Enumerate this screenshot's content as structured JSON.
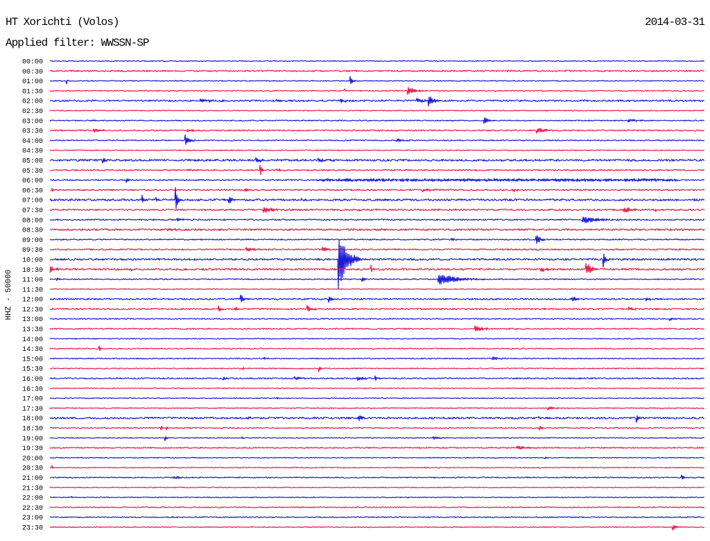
{
  "chart_data": {
    "type": "line",
    "title": "HT Xorichti (Volos)",
    "date": "2014-03-31",
    "filter_label": "Applied filter: WWSSN-SP",
    "ylabel": "HHZ - 50000",
    "grid": false,
    "trace_colors": [
      "#1c1cd4",
      "#ea1a4c"
    ],
    "traces": [
      {
        "start": "00:00",
        "noise": 0.04,
        "events": []
      },
      {
        "start": "00:30",
        "noise": 0.07,
        "events": [
          {
            "t": "00:34:27",
            "amp": 0.2,
            "dur": 6
          }
        ]
      },
      {
        "start": "01:00",
        "noise": 0.04,
        "events": [
          {
            "t": "01:00:46",
            "amp": 0.3,
            "dur": 6
          },
          {
            "t": "01:13:46",
            "amp": 0.55,
            "dur": 18
          }
        ]
      },
      {
        "start": "01:30",
        "noise": 0.05,
        "events": [
          {
            "t": "01:43:30",
            "amp": 0.2,
            "dur": 6
          },
          {
            "t": "01:46:24",
            "amp": 0.4,
            "dur": 54
          }
        ]
      },
      {
        "start": "02:00",
        "noise": 0.08,
        "events": [
          {
            "t": "02:06:54",
            "amp": 0.15,
            "dur": 96
          },
          {
            "t": "02:10:24",
            "amp": 0.15,
            "dur": 36
          },
          {
            "t": "02:13:18",
            "amp": 0.2,
            "dur": 54
          },
          {
            "t": "02:16:48",
            "amp": 0.25,
            "dur": 54
          },
          {
            "t": "02:17:21",
            "amp": 0.55,
            "dur": 36
          }
        ]
      },
      {
        "start": "02:30",
        "noise": 0.04,
        "events": []
      },
      {
        "start": "03:00",
        "noise": 0.05,
        "events": [
          {
            "t": "03:02:00",
            "amp": 0.12,
            "dur": 12
          },
          {
            "t": "03:19:53",
            "amp": 0.4,
            "dur": 30
          },
          {
            "t": "03:26:30",
            "amp": 0.18,
            "dur": 54
          }
        ]
      },
      {
        "start": "03:30",
        "noise": 0.06,
        "events": [
          {
            "t": "03:32:00",
            "amp": 0.2,
            "dur": 48
          },
          {
            "t": "03:36:18",
            "amp": 0.15,
            "dur": 60
          },
          {
            "t": "03:52:18",
            "amp": 0.25,
            "dur": 72
          }
        ]
      },
      {
        "start": "04:00",
        "noise": 0.05,
        "events": [
          {
            "t": "04:06:12",
            "amp": 0.6,
            "dur": 30
          },
          {
            "t": "04:15:54",
            "amp": 0.2,
            "dur": 54
          }
        ]
      },
      {
        "start": "04:30",
        "noise": 0.04,
        "events": []
      },
      {
        "start": "05:00",
        "noise": 0.1,
        "events": [
          {
            "t": "05:02:24",
            "amp": 0.22,
            "dur": 30
          },
          {
            "t": "05:09:27",
            "amp": 0.35,
            "dur": 36
          },
          {
            "t": "05:12:18",
            "amp": 0.15,
            "dur": 54
          }
        ]
      },
      {
        "start": "05:30",
        "noise": 0.06,
        "events": [
          {
            "t": "05:36:18",
            "amp": 0.1,
            "dur": 60
          },
          {
            "t": "05:39:38",
            "amp": 0.7,
            "dur": 12
          },
          {
            "t": "05:40:24",
            "amp": 0.15,
            "dur": 48
          }
        ]
      },
      {
        "start": "06:00",
        "noise": 0.06,
        "events": [
          {
            "t": "06:03:30",
            "amp": 0.3,
            "dur": 12
          },
          {
            "t": "06:12:00",
            "amp": 0.1,
            "dur": 1020
          }
        ]
      },
      {
        "start": "06:30",
        "noise": 0.07,
        "events": [
          {
            "t": "06:30:06",
            "amp": 0.2,
            "dur": 12
          },
          {
            "t": "06:38:54",
            "amp": 0.15,
            "dur": 48
          },
          {
            "t": "06:47:06",
            "amp": 0.2,
            "dur": 48
          },
          {
            "t": "06:51:12",
            "amp": 0.15,
            "dur": 48
          }
        ]
      },
      {
        "start": "07:00",
        "noise": 0.1,
        "events": [
          {
            "t": "07:04:14",
            "amp": 0.45,
            "dur": 12
          },
          {
            "t": "07:04:52",
            "amp": 0.3,
            "dur": 12
          },
          {
            "t": "07:05:45",
            "amp": 1.8,
            "dur": 15
          },
          {
            "t": "07:08:12",
            "amp": 0.55,
            "dur": 24
          },
          {
            "t": "07:11:30",
            "amp": 0.2,
            "dur": 18
          }
        ]
      },
      {
        "start": "07:30",
        "noise": 0.08,
        "events": [
          {
            "t": "07:39:48",
            "amp": 0.35,
            "dur": 60
          },
          {
            "t": "07:44:06",
            "amp": 0.15,
            "dur": 18
          },
          {
            "t": "07:56:18",
            "amp": 0.3,
            "dur": 60
          },
          {
            "t": "07:57:42",
            "amp": 0.2,
            "dur": 24
          }
        ]
      },
      {
        "start": "08:00",
        "noise": 0.06,
        "events": [
          {
            "t": "08:04:42",
            "amp": 0.15,
            "dur": 12
          },
          {
            "t": "08:05:48",
            "amp": 0.2,
            "dur": 36
          },
          {
            "t": "08:24:24",
            "amp": 0.38,
            "dur": 108
          }
        ]
      },
      {
        "start": "08:30",
        "noise": 0.09,
        "events": [
          {
            "t": "08:35:18",
            "amp": 0.12,
            "dur": 90
          }
        ]
      },
      {
        "start": "09:00",
        "noise": 0.06,
        "events": [
          {
            "t": "09:18:24",
            "amp": 0.2,
            "dur": 18
          },
          {
            "t": "09:22:17",
            "amp": 0.6,
            "dur": 30
          }
        ]
      },
      {
        "start": "09:30",
        "noise": 0.07,
        "events": [
          {
            "t": "09:39:00",
            "amp": 0.22,
            "dur": 60
          },
          {
            "t": "09:42:30",
            "amp": 0.35,
            "dur": 30
          }
        ]
      },
      {
        "start": "10:00",
        "noise": 0.09,
        "events": [
          {
            "t": "10:13:13",
            "amp": 3.2,
            "dur": 60
          },
          {
            "t": "10:25:22",
            "amp": 0.85,
            "dur": 18
          }
        ]
      },
      {
        "start": "10:30",
        "noise": 0.09,
        "events": [
          {
            "t": "10:30:00",
            "amp": 0.28,
            "dur": 48
          },
          {
            "t": "10:33:45",
            "amp": 0.15,
            "dur": 12
          },
          {
            "t": "10:44:43",
            "amp": 0.45,
            "dur": 12
          },
          {
            "t": "10:52:30",
            "amp": 0.28,
            "dur": 48
          },
          {
            "t": "10:54:34",
            "amp": 0.7,
            "dur": 42
          }
        ]
      },
      {
        "start": "11:00",
        "noise": 0.05,
        "events": [
          {
            "t": "11:00:19",
            "amp": 0.2,
            "dur": 12
          },
          {
            "t": "11:14:18",
            "amp": 0.3,
            "dur": 18
          },
          {
            "t": "11:17:47",
            "amp": 0.6,
            "dur": 138
          }
        ]
      },
      {
        "start": "11:30",
        "noise": 0.04,
        "events": []
      },
      {
        "start": "12:00",
        "noise": 0.07,
        "events": [
          {
            "t": "12:08:44",
            "amp": 0.5,
            "dur": 24
          },
          {
            "t": "12:12:46",
            "amp": 0.38,
            "dur": 24
          },
          {
            "t": "12:23:56",
            "amp": 0.2,
            "dur": 66
          },
          {
            "t": "12:27:18",
            "amp": 0.2,
            "dur": 36
          }
        ]
      },
      {
        "start": "12:30",
        "noise": 0.07,
        "events": [
          {
            "t": "12:37:43",
            "amp": 0.38,
            "dur": 18
          },
          {
            "t": "12:38:30",
            "amp": 0.2,
            "dur": 30
          },
          {
            "t": "12:41:47",
            "amp": 0.42,
            "dur": 30
          },
          {
            "t": "12:56:30",
            "amp": 0.2,
            "dur": 36
          }
        ]
      },
      {
        "start": "13:00",
        "noise": 0.05,
        "events": [
          {
            "t": "13:28:24",
            "amp": 0.15,
            "dur": 18
          }
        ]
      },
      {
        "start": "13:30",
        "noise": 0.06,
        "events": [
          {
            "t": "13:49:29",
            "amp": 0.38,
            "dur": 48
          }
        ]
      },
      {
        "start": "14:00",
        "noise": 0.04,
        "events": [
          {
            "t": "14:01:06",
            "amp": 0.1,
            "dur": 18
          }
        ]
      },
      {
        "start": "14:30",
        "noise": 0.05,
        "events": [
          {
            "t": "14:32:16",
            "amp": 0.3,
            "dur": 12
          }
        ]
      },
      {
        "start": "15:00",
        "noise": 0.05,
        "events": [
          {
            "t": "15:09:48",
            "amp": 0.12,
            "dur": 18
          },
          {
            "t": "15:20:16",
            "amp": 0.15,
            "dur": 48
          }
        ]
      },
      {
        "start": "15:30",
        "noise": 0.05,
        "events": [
          {
            "t": "15:38:50",
            "amp": 0.15,
            "dur": 12
          },
          {
            "t": "15:42:20",
            "amp": 0.3,
            "dur": 12
          }
        ]
      },
      {
        "start": "16:00",
        "noise": 0.06,
        "events": [
          {
            "t": "16:07:56",
            "amp": 0.3,
            "dur": 12
          },
          {
            "t": "16:11:13",
            "amp": 0.18,
            "dur": 48
          },
          {
            "t": "16:14:05",
            "amp": 0.22,
            "dur": 54
          },
          {
            "t": "16:14:54",
            "amp": 0.3,
            "dur": 18
          }
        ]
      },
      {
        "start": "16:30",
        "noise": 0.04,
        "events": []
      },
      {
        "start": "17:00",
        "noise": 0.04,
        "events": [
          {
            "t": "17:10:24",
            "amp": 0.1,
            "dur": 12
          }
        ]
      },
      {
        "start": "17:30",
        "noise": 0.05,
        "events": [
          {
            "t": "17:52:49",
            "amp": 0.2,
            "dur": 48
          }
        ]
      },
      {
        "start": "18:00",
        "noise": 0.09,
        "events": [
          {
            "t": "18:09:05",
            "amp": 0.2,
            "dur": 12
          },
          {
            "t": "18:14:08",
            "amp": 0.38,
            "dur": 24
          },
          {
            "t": "18:22:24",
            "amp": 0.15,
            "dur": 12
          },
          {
            "t": "18:26:53",
            "amp": 0.42,
            "dur": 12
          }
        ]
      },
      {
        "start": "18:30",
        "noise": 0.05,
        "events": [
          {
            "t": "18:35:05",
            "amp": 0.3,
            "dur": 12
          },
          {
            "t": "18:35:20",
            "amp": 0.25,
            "dur": 12
          },
          {
            "t": "18:52:26",
            "amp": 0.35,
            "dur": 18
          }
        ]
      },
      {
        "start": "19:00",
        "noise": 0.04,
        "events": [
          {
            "t": "19:05:16",
            "amp": 0.35,
            "dur": 12
          },
          {
            "t": "19:08:48",
            "amp": 0.1,
            "dur": 12
          },
          {
            "t": "19:17:34",
            "amp": 0.15,
            "dur": 60
          }
        ]
      },
      {
        "start": "19:30",
        "noise": 0.06,
        "events": [
          {
            "t": "19:51:23",
            "amp": 0.2,
            "dur": 72
          }
        ]
      },
      {
        "start": "20:00",
        "noise": 0.04,
        "events": [
          {
            "t": "20:22:42",
            "amp": 0.1,
            "dur": 12
          }
        ]
      },
      {
        "start": "20:30",
        "noise": 0.04,
        "events": [
          {
            "t": "20:30:06",
            "amp": 0.22,
            "dur": 6
          },
          {
            "t": "20:47:12",
            "amp": 0.1,
            "dur": 12
          }
        ]
      },
      {
        "start": "21:00",
        "noise": 0.05,
        "events": [
          {
            "t": "21:05:40",
            "amp": 0.15,
            "dur": 60
          },
          {
            "t": "21:28:57",
            "amp": 0.35,
            "dur": 12
          }
        ]
      },
      {
        "start": "21:30",
        "noise": 0.04,
        "events": []
      },
      {
        "start": "22:00",
        "noise": 0.04,
        "events": [
          {
            "t": "22:01:00",
            "amp": 0.1,
            "dur": 12
          }
        ]
      },
      {
        "start": "22:30",
        "noise": 0.05,
        "events": []
      },
      {
        "start": "23:00",
        "noise": 0.05,
        "events": []
      },
      {
        "start": "23:30",
        "noise": 0.04,
        "events": [
          {
            "t": "23:58:32",
            "amp": 0.35,
            "dur": 30
          }
        ]
      }
    ]
  }
}
